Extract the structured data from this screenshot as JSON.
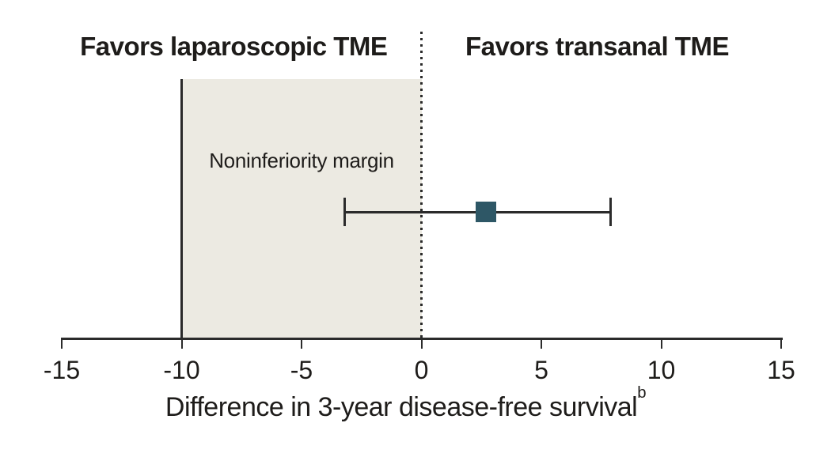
{
  "chart_data": {
    "type": "scatter",
    "subtype": "noninferiority-forest-plot",
    "header": {
      "left_label": "Favors laparoscopic TME",
      "right_label": "Favors transanal TME"
    },
    "series": [
      {
        "name": "Difference in 3-year disease-free survival",
        "estimate": 2.7,
        "ci_low": -3.2,
        "ci_high": 7.9
      }
    ],
    "noninferiority_margin": {
      "value": -10,
      "label": "Noninferiority margin"
    },
    "reference_line_x": 0,
    "xlabel": "Difference in 3-year disease-free survival",
    "xlabel_superscript": "b",
    "xlim": [
      -15,
      15
    ],
    "x_ticks": [
      {
        "value": -15,
        "label": "-15"
      },
      {
        "value": -10,
        "label": "-10"
      },
      {
        "value": -5,
        "label": "-5"
      },
      {
        "value": 0,
        "label": "0"
      },
      {
        "value": 5,
        "label": "5"
      },
      {
        "value": 10,
        "label": "10"
      },
      {
        "value": 15,
        "label": "15"
      }
    ],
    "grid": false,
    "legend": "none",
    "colors": {
      "marker": "#2e5766",
      "shaded_region": "#eceae2",
      "line": "#2b2b2b",
      "text": "#1e1c1a"
    }
  }
}
